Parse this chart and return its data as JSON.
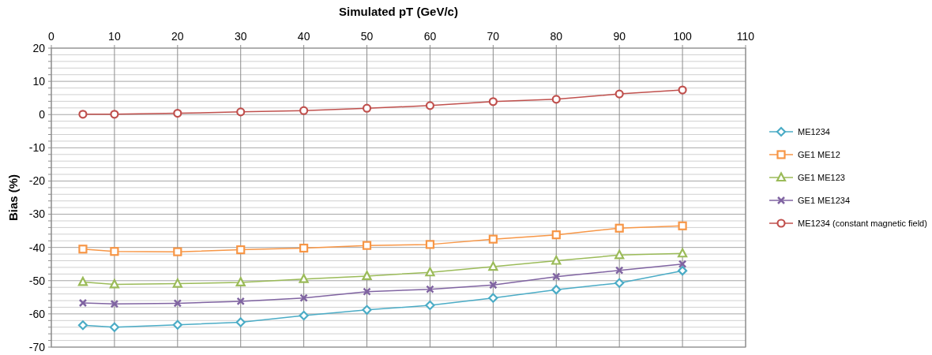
{
  "chart_data": {
    "type": "line",
    "xlabel": "Simulated pT (GeV/c)",
    "ylabel": "Bias (%)",
    "x": [
      5,
      10,
      20,
      30,
      40,
      50,
      60,
      70,
      80,
      90,
      100
    ],
    "xlim": [
      0,
      110
    ],
    "xticks": [
      0,
      10,
      20,
      30,
      40,
      50,
      60,
      70,
      80,
      90,
      100,
      110
    ],
    "ylim": [
      -70,
      20
    ],
    "yticks": [
      -70,
      {
        "value": -68,
        "label": null
      },
      {
        "value": -66,
        "label": null
      },
      {
        "value": -64,
        "label": null
      },
      {
        "value": -62,
        "label": null
      },
      -60,
      {
        "value": -58,
        "label": null
      },
      {
        "value": -56,
        "label": null
      },
      {
        "value": -54,
        "label": null
      },
      {
        "value": -52,
        "label": null
      },
      -50,
      {
        "value": -48,
        "label": null
      },
      {
        "value": -46,
        "label": null
      },
      {
        "value": -44,
        "label": null
      },
      {
        "value": -42,
        "label": null
      },
      -40,
      {
        "value": -38,
        "label": null
      },
      {
        "value": -36,
        "label": null
      },
      {
        "value": -34,
        "label": null
      },
      {
        "value": -32,
        "label": null
      },
      -30,
      {
        "value": -28,
        "label": null
      },
      {
        "value": -26,
        "label": null
      },
      {
        "value": -24,
        "label": null
      },
      {
        "value": -22,
        "label": null
      },
      -20,
      {
        "value": -18,
        "label": null
      },
      {
        "value": -16,
        "label": null
      },
      {
        "value": -14,
        "label": null
      },
      {
        "value": -12,
        "label": null
      },
      -10,
      {
        "value": -8,
        "label": null
      },
      {
        "value": -6,
        "label": null
      },
      {
        "value": -4,
        "label": null
      },
      {
        "value": -2,
        "label": null
      },
      0,
      {
        "value": 2,
        "label": null
      },
      {
        "value": 4,
        "label": null
      },
      {
        "value": 6,
        "label": null
      },
      {
        "value": 8,
        "label": null
      },
      10,
      {
        "value": 12,
        "label": null
      },
      {
        "value": 14,
        "label": null
      },
      {
        "value": 16,
        "label": null
      },
      {
        "value": 18,
        "label": null
      },
      20
    ],
    "grid": true,
    "legend": "right",
    "line_style": "solid",
    "series": [
      {
        "name": "ME1234",
        "color": "#4bacc6",
        "marker": "diamond",
        "values": [
          -63.4,
          -64.0,
          -63.3,
          -62.5,
          -60.5,
          -58.8,
          -57.4,
          -55.2,
          -52.7,
          -50.7,
          -47.0
        ]
      },
      {
        "name": "GE1 ME12",
        "color": "#f79646",
        "marker": "square",
        "values": [
          -40.5,
          -41.2,
          -41.3,
          -40.7,
          -40.2,
          -39.4,
          -39.1,
          -37.5,
          -36.2,
          -34.2,
          -33.5
        ]
      },
      {
        "name": "GE1 ME123",
        "color": "#9bbb59",
        "marker": "triangle",
        "values": [
          -50.4,
          -51.1,
          -50.9,
          -50.5,
          -49.5,
          -48.6,
          -47.5,
          -45.8,
          -44.0,
          -42.3,
          -41.8
        ]
      },
      {
        "name": "GE1 ME1234",
        "color": "#8064a2",
        "marker": "cross",
        "values": [
          -56.7,
          -57.0,
          -56.8,
          -56.2,
          -55.2,
          -53.3,
          -52.6,
          -51.3,
          -48.8,
          -46.9,
          -45.0
        ]
      },
      {
        "name": "ME1234 (constant magnetic field)",
        "color": "#c0504d",
        "marker": "circle",
        "values": [
          0.1,
          0.1,
          0.4,
          0.8,
          1.2,
          1.9,
          2.7,
          3.9,
          4.6,
          6.2,
          7.4
        ]
      }
    ]
  }
}
